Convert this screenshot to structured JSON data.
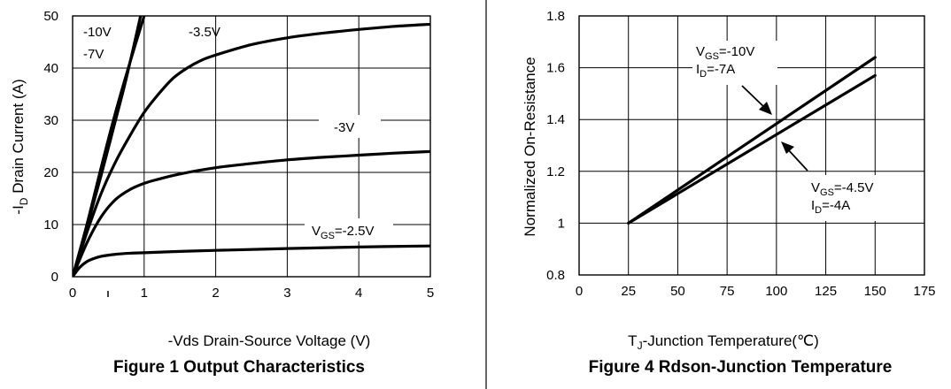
{
  "chart_data": [
    {
      "type": "line",
      "title": "Figure 1 Output Characteristics",
      "xlabel": "-Vds Drain-Source Voltage (V)",
      "ylabel_prefix": "-I",
      "ylabel_sub": "D",
      "ylabel_suffix": " Drain Current (A)",
      "xlim": [
        0,
        5
      ],
      "ylim": [
        0,
        50
      ],
      "xticks": [
        "0",
        "1",
        "2",
        "3",
        "4",
        "5"
      ],
      "yticks": [
        "0",
        "10",
        "20",
        "30",
        "40",
        "50"
      ],
      "grid": true,
      "series": [
        {
          "name": "-10V",
          "x": [
            0,
            0.2,
            0.4,
            0.6,
            0.8,
            1.0
          ],
          "y": [
            0,
            10,
            21,
            31.5,
            41,
            50
          ]
        },
        {
          "name": "-7V",
          "x": [
            0,
            0.2,
            0.4,
            0.6,
            0.75,
            0.95
          ],
          "y": [
            0,
            9.5,
            19.5,
            30,
            38,
            50
          ]
        },
        {
          "name": "-3.5V",
          "x": [
            0,
            0.2,
            0.4,
            0.6,
            0.8,
            1.0,
            1.2,
            1.4,
            1.6,
            1.8,
            2.0,
            2.5,
            3.0,
            3.5,
            4.0,
            4.5,
            5.0
          ],
          "y": [
            0,
            8.5,
            16,
            22,
            27,
            31.5,
            35,
            38,
            40,
            41.5,
            42.5,
            44.5,
            45.8,
            46.7,
            47.4,
            48,
            48.4
          ]
        },
        {
          "name": "-3V",
          "x": [
            0,
            0.2,
            0.4,
            0.6,
            0.8,
            1.0,
            1.2,
            1.5,
            2.0,
            2.5,
            3.0,
            3.5,
            4.0,
            4.5,
            5.0
          ],
          "y": [
            0,
            6.5,
            11.5,
            14.8,
            16.7,
            17.9,
            18.7,
            19.7,
            20.9,
            21.7,
            22.4,
            22.9,
            23.3,
            23.7,
            24
          ]
        },
        {
          "name": "VGS=-2.5V",
          "x": [
            0,
            0.1,
            0.2,
            0.3,
            0.4,
            0.6,
            0.8,
            1.0,
            1.5,
            2.0,
            3.0,
            4.0,
            5.0
          ],
          "y": [
            0,
            1.8,
            2.9,
            3.5,
            3.9,
            4.3,
            4.5,
            4.6,
            4.85,
            5.05,
            5.4,
            5.7,
            5.9
          ]
        }
      ],
      "annotations": {
        "v10": "-10V",
        "v7": "-7V",
        "v35": "-3.5V",
        "v3": "-3V",
        "v25_pre": "V",
        "v25_sub": "GS",
        "v25_post": "=-2.5V"
      }
    },
    {
      "type": "line",
      "title": "Figure 4 Rdson-Junction Temperature",
      "xlabel_prefix": "T",
      "xlabel_sub": "J",
      "xlabel_suffix": "-Junction Temperature(℃)",
      "ylabel": "Normalized On-Resistance",
      "xlim": [
        0,
        175
      ],
      "ylim": [
        0.8,
        1.8
      ],
      "xticks": [
        "0",
        "25",
        "50",
        "75",
        "100",
        "125",
        "150",
        "175"
      ],
      "yticks": [
        "0.8",
        "1",
        "1.2",
        "1.4",
        "1.6",
        "1.8"
      ],
      "grid": true,
      "series": [
        {
          "name": "VGS=-10V ID=-7A",
          "x": [
            25,
            150
          ],
          "y": [
            1.0,
            1.64
          ]
        },
        {
          "name": "VGS=-4.5V ID=-4A",
          "x": [
            25,
            150
          ],
          "y": [
            1.0,
            1.57
          ]
        }
      ],
      "annotations": {
        "a_vgs_pre": "V",
        "a_vgs_sub": "GS",
        "a_vgs_post": "=-10V",
        "a_id_pre": "I",
        "a_id_sub": "D",
        "a_id_post": "=-7A",
        "b_vgs_pre": "V",
        "b_vgs_sub": "GS",
        "b_vgs_post": "=-4.5V",
        "b_id_pre": "I",
        "b_id_sub": "D",
        "b_id_post": "=-4A"
      }
    }
  ]
}
